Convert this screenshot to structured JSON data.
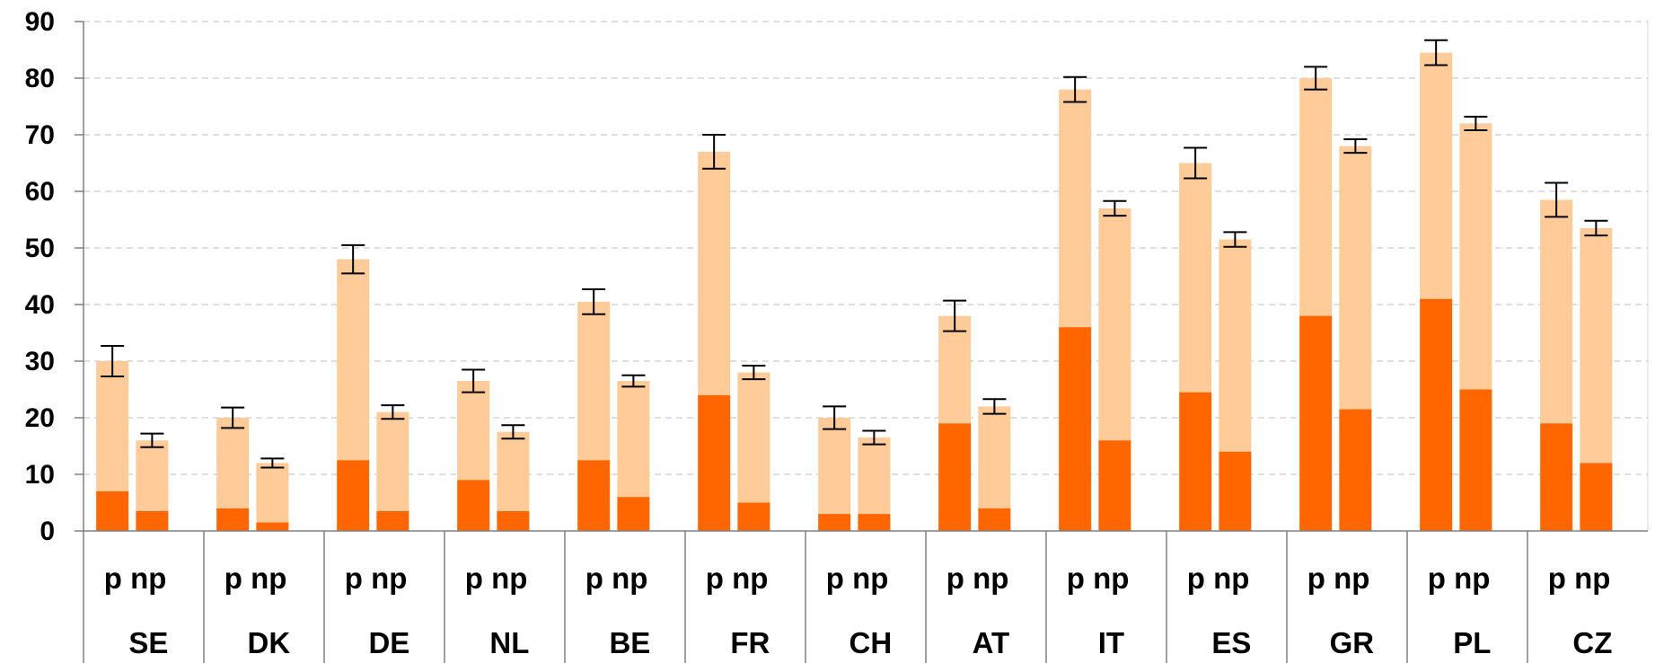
{
  "chart_data": {
    "type": "bar",
    "stacked": true,
    "error_bars": true,
    "title": "",
    "xlabel": "",
    "ylabel": "",
    "ylim": [
      0,
      90
    ],
    "yticks": [
      0,
      10,
      20,
      30,
      40,
      50,
      60,
      70,
      80,
      90
    ],
    "grid": "horizontal dashed",
    "subcategory_labels": [
      "p",
      "np"
    ],
    "groups": [
      {
        "country": "SE",
        "bars": [
          {
            "sub": "p",
            "lower": 7,
            "total": 30,
            "err": 2.7
          },
          {
            "sub": "np",
            "lower": 3.5,
            "total": 16,
            "err": 1.2
          }
        ]
      },
      {
        "country": "DK",
        "bars": [
          {
            "sub": "p",
            "lower": 4,
            "total": 20,
            "err": 1.8
          },
          {
            "sub": "np",
            "lower": 1.5,
            "total": 12,
            "err": 0.8
          }
        ]
      },
      {
        "country": "DE",
        "bars": [
          {
            "sub": "p",
            "lower": 12.5,
            "total": 48,
            "err": 2.5
          },
          {
            "sub": "np",
            "lower": 3.5,
            "total": 21,
            "err": 1.2
          }
        ]
      },
      {
        "country": "NL",
        "bars": [
          {
            "sub": "p",
            "lower": 9,
            "total": 26.5,
            "err": 2.0
          },
          {
            "sub": "np",
            "lower": 3.5,
            "total": 17.5,
            "err": 1.2
          }
        ]
      },
      {
        "country": "BE",
        "bars": [
          {
            "sub": "p",
            "lower": 12.5,
            "total": 40.5,
            "err": 2.2
          },
          {
            "sub": "np",
            "lower": 6,
            "total": 26.5,
            "err": 1.0
          }
        ]
      },
      {
        "country": "FR",
        "bars": [
          {
            "sub": "p",
            "lower": 24,
            "total": 67,
            "err": 3.0
          },
          {
            "sub": "np",
            "lower": 5,
            "total": 28,
            "err": 1.2
          }
        ]
      },
      {
        "country": "CH",
        "bars": [
          {
            "sub": "p",
            "lower": 3,
            "total": 20,
            "err": 2.0
          },
          {
            "sub": "np",
            "lower": 3,
            "total": 16.5,
            "err": 1.2
          }
        ]
      },
      {
        "country": "AT",
        "bars": [
          {
            "sub": "p",
            "lower": 19,
            "total": 38,
            "err": 2.7
          },
          {
            "sub": "np",
            "lower": 4,
            "total": 22,
            "err": 1.3
          }
        ]
      },
      {
        "country": "IT",
        "bars": [
          {
            "sub": "p",
            "lower": 36,
            "total": 78,
            "err": 2.2
          },
          {
            "sub": "np",
            "lower": 16,
            "total": 57,
            "err": 1.3
          }
        ]
      },
      {
        "country": "ES",
        "bars": [
          {
            "sub": "p",
            "lower": 24.5,
            "total": 65,
            "err": 2.7
          },
          {
            "sub": "np",
            "lower": 14,
            "total": 51.5,
            "err": 1.3
          }
        ]
      },
      {
        "country": "GR",
        "bars": [
          {
            "sub": "p",
            "lower": 38,
            "total": 80,
            "err": 2.0
          },
          {
            "sub": "np",
            "lower": 21.5,
            "total": 68,
            "err": 1.2
          }
        ]
      },
      {
        "country": "PL",
        "bars": [
          {
            "sub": "p",
            "lower": 41,
            "total": 84.5,
            "err": 2.2
          },
          {
            "sub": "np",
            "lower": 25,
            "total": 72,
            "err": 1.2
          }
        ]
      },
      {
        "country": "CZ",
        "bars": [
          {
            "sub": "p",
            "lower": 19,
            "total": 58.5,
            "err": 3.0
          },
          {
            "sub": "np",
            "lower": 12,
            "total": 53.5,
            "err": 1.3
          }
        ]
      }
    ],
    "colors": {
      "lower": "#ff6600",
      "upper": "#ffcc99",
      "error_bar": "#000000",
      "grid": "#bfbfbf",
      "axis": "#808080"
    }
  }
}
